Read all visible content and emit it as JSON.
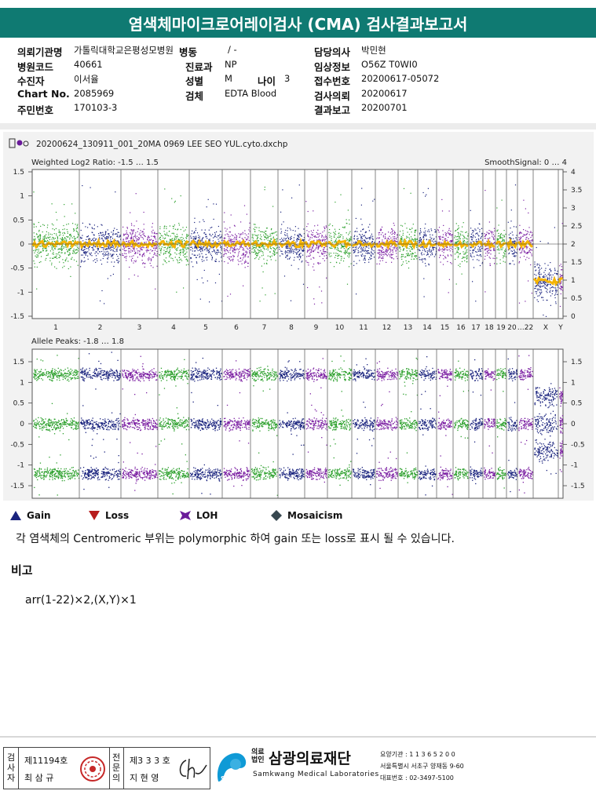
{
  "title": "염색체마이크로어레이검사 (CMA) 검사결과보고서",
  "info": {
    "institution_label": "의뢰기관명",
    "institution_value": "가톨릭대학교은평성모병원",
    "ward_label": "병동",
    "ward_value": "/ -",
    "doctor_label": "담당의사",
    "doctor_value": "박민현",
    "hospital_code_label": "병원코드",
    "hospital_code_value": "40661",
    "department_label": "진료과",
    "department_value": "NP",
    "clinical_label": "임상정보",
    "clinical_value": "O56Z T0WI0",
    "patient_label": "수진자",
    "patient_value": "이서율",
    "sex_label": "성별",
    "sex_value": "M",
    "age_label": "나이",
    "age_value": "3",
    "receipt_label": "접수번호",
    "receipt_value": "20200617-05072",
    "chart_label": "Chart No.",
    "chart_value": "2085969",
    "specimen_label": "검체",
    "specimen_value": "EDTA Blood",
    "request_label": "검사의뢰",
    "request_value": "20200617",
    "resident_label": "주민번호",
    "resident_value": "170103-3",
    "report_label": "결과보고",
    "report_value": "20200701"
  },
  "chart": {
    "filename": "20200624_130911_001_20MA 0969 LEE SEO YUL.cyto.dxchp",
    "top_title": "Weighted Log2 Ratio: -1.5 … 1.5",
    "top_right_title": "SmoothSignal: 0 … 4",
    "bottom_title": "Allele Peaks: -1.8 … 1.8",
    "top_left_ticks": [
      "1.5",
      "1",
      "0.5",
      "0",
      "-0.5",
      "-1",
      "-1.5"
    ],
    "top_right_ticks": [
      "4",
      "3.5",
      "3",
      "2.5",
      "2",
      "1.5",
      "1",
      "0.5",
      "0"
    ],
    "bottom_left_ticks": [
      "1.5",
      "1",
      "0.5",
      "0",
      "-0.5",
      "-1",
      "-1.5"
    ],
    "bottom_right_ticks": [
      "1.5",
      "1",
      "0.5",
      "0",
      "-0.5",
      "-1",
      "-1.5"
    ],
    "chromosomes": [
      "1",
      "2",
      "3",
      "4",
      "5",
      "6",
      "7",
      "8",
      "9",
      "10",
      "11",
      "12",
      "13",
      "14",
      "15",
      "16",
      "17",
      "18",
      "19",
      "20",
      "…22",
      "X",
      "Y"
    ]
  },
  "legend": {
    "gain": "Gain",
    "loss": "Loss",
    "loh": "LOH",
    "mosaicism": "Mosaicism",
    "colors": {
      "gain": "#1a237e",
      "loss": "#b71c1c",
      "loh": "#6a1b9a",
      "mosaicism": "#37474f"
    }
  },
  "note": "각 염색체의 Centromeric 부위는 polymorphic 하여 gain 또는 loss로 표시 될 수 있습니다.",
  "remark": {
    "title": "비고",
    "text": "arr(1-22)×2,(X,Y)×1"
  },
  "footer": {
    "examiner_label": "검사자",
    "examiner_license": "제11194호",
    "examiner_name": "최 삼 규",
    "doctor_label": "전문의",
    "doctor_license": "제3 3 3 호",
    "doctor_name": "지 현 영",
    "org_prefix_top": "의료",
    "org_prefix_bottom": "법인",
    "org_name": "삼광의료재단",
    "org_english": "Samkwang Medical Laboratories",
    "org_logo": "SML",
    "org_code": "요양기관 : 1 1 3 6 5 2 0 0",
    "org_address": "서울특별시 서초구 양재동 9-60",
    "org_phone": "대표번호 : 02-3497-5100"
  }
}
